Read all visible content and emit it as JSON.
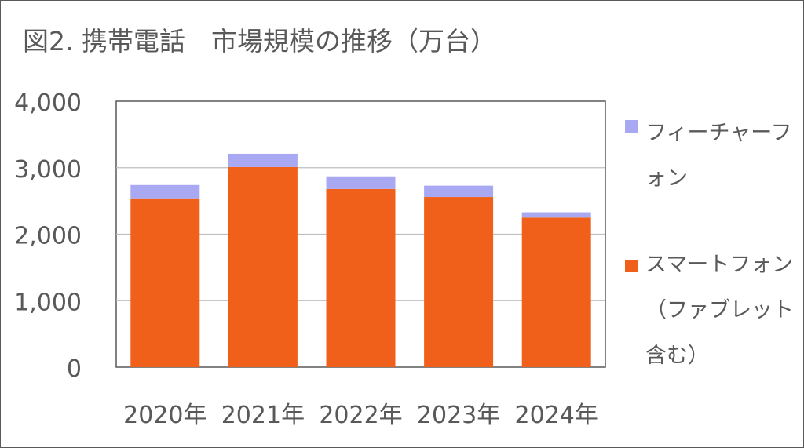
{
  "title": "図2. 携帯電話　市場規模の推移（万台）",
  "chart_data": {
    "type": "bar",
    "stacked": true,
    "title": "図2. 携帯電話　市場規模の推移（万台）",
    "xlabel": "",
    "ylabel": "",
    "categories": [
      "2020年",
      "2021年",
      "2022年",
      "2023年",
      "2024年"
    ],
    "yticks": [
      "0",
      "1,000",
      "2,000",
      "3,000",
      "4,000"
    ],
    "ylim": [
      0,
      4000
    ],
    "grid": true,
    "legend_position": "right",
    "series": [
      {
        "name": "スマートフォン（ファブレット含む）",
        "color": "#f0601a",
        "values": [
          2540,
          3010,
          2680,
          2560,
          2250
        ]
      },
      {
        "name": "フィーチャーフォン",
        "color": "#a9a8f2",
        "values": [
          200,
          200,
          190,
          170,
          80
        ]
      }
    ]
  }
}
